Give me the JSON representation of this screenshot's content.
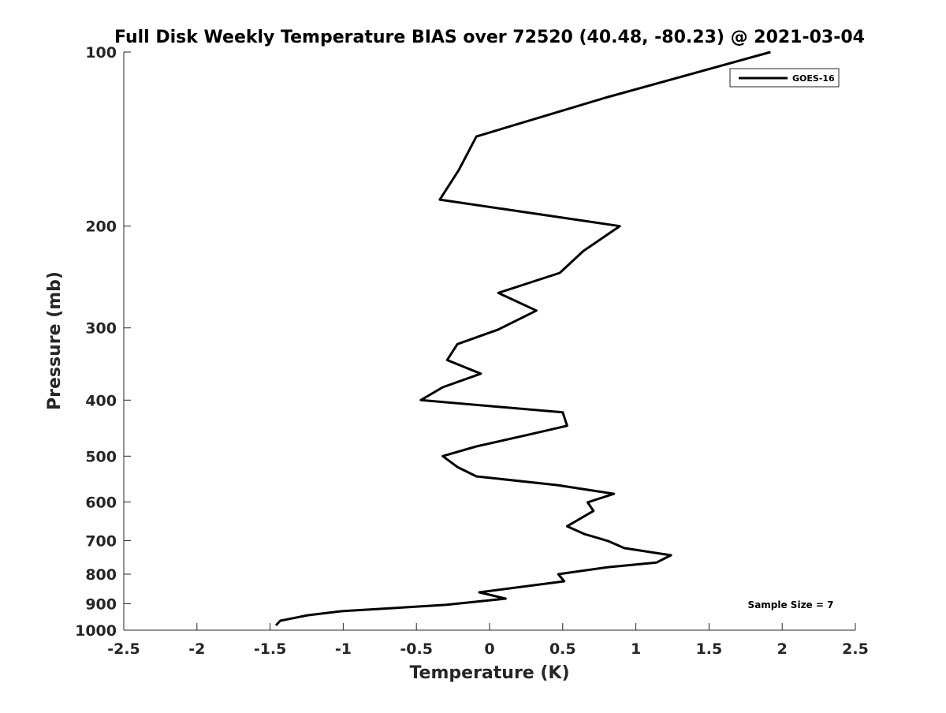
{
  "chart_data": {
    "type": "line",
    "title": "Full Disk Weekly Temperature BIAS over 72520 (40.48, -80.23) @ 2021-03-04",
    "xlabel": "Temperature (K)",
    "ylabel": "Pressure (mb)",
    "xlim": [
      -2.5,
      2.5
    ],
    "ylim": [
      100,
      1000
    ],
    "yscale": "log",
    "y_reversed": true,
    "grid": false,
    "xticks": [
      -2.5,
      -2,
      -1.5,
      -1,
      -0.5,
      0,
      0.5,
      1,
      1.5,
      2,
      2.5
    ],
    "xtick_labels": [
      "-2.5",
      "-2",
      "-1.5",
      "-1",
      "-0.5",
      "0",
      "0.5",
      "1",
      "1.5",
      "2",
      "2.5"
    ],
    "yticks": [
      100,
      200,
      300,
      400,
      500,
      600,
      700,
      800,
      900,
      1000
    ],
    "ytick_labels": [
      "100",
      "200",
      "300",
      "400",
      "500",
      "600",
      "700",
      "800",
      "900",
      "1000"
    ],
    "legend": {
      "placement": "top-right",
      "entries": [
        "GOES-16"
      ]
    },
    "annotation": "Sample Size = 7",
    "series": [
      {
        "name": "GOES-16",
        "color": "#000000",
        "x": [
          1.92,
          0.79,
          -0.09,
          -0.21,
          -0.34,
          0.89,
          0.64,
          0.48,
          0.06,
          0.32,
          0.06,
          -0.22,
          -0.29,
          -0.06,
          -0.32,
          -0.47,
          0.5,
          0.53,
          0.25,
          -0.09,
          -0.32,
          -0.22,
          -0.09,
          0.46,
          0.85,
          0.67,
          0.71,
          0.53,
          0.65,
          0.81,
          0.92,
          1.24,
          1.14,
          0.81,
          0.47,
          0.51,
          -0.07,
          0.11,
          -0.3,
          -1.01,
          -1.24,
          -1.43,
          -1.46
        ],
        "y": [
          100,
          120,
          140,
          160,
          180,
          200,
          221,
          241,
          261,
          280,
          302,
          320,
          341,
          360,
          380,
          400,
          420,
          443,
          460,
          481,
          500,
          522,
          542,
          561,
          581,
          601,
          622,
          661,
          682,
          701,
          721,
          742,
          764,
          778,
          800,
          823,
          860,
          882,
          904,
          927,
          942,
          963,
          981
        ]
      }
    ]
  }
}
